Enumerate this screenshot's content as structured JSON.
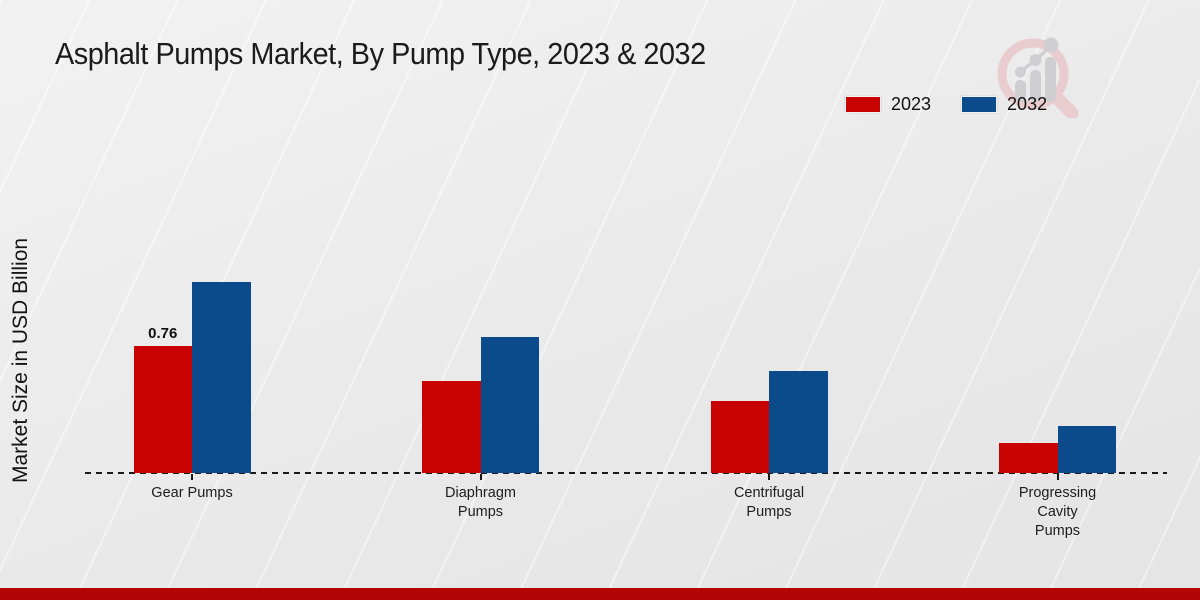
{
  "page": {
    "title": "Asphalt Pumps Market, By Pump Type, 2023 & 2032"
  },
  "y_axis_label": "Market Size in USD Billion",
  "legend": {
    "items": [
      {
        "label": "2023",
        "color": "#c90202"
      },
      {
        "label": "2032",
        "color": "#0b4b8c"
      }
    ]
  },
  "footer": {
    "color": "#b30505"
  },
  "logo": {
    "name": "market-research-magnifier-logo"
  },
  "colors": {
    "series_2023": "#c90202",
    "series_2032": "#0b4b8c",
    "footer_band": "#b30505",
    "axis": "#1a1a1a",
    "background": "#ededed"
  },
  "chart_data": {
    "type": "bar",
    "title": "Asphalt Pumps Market, By Pump Type, 2023 & 2032",
    "xlabel": "",
    "ylabel": "Market Size in USD Billion",
    "unit": "USD Billion",
    "categories": [
      "Gear Pumps",
      "Diaphragm Pumps",
      "Centrifugal Pumps",
      "Progressing Cavity Pumps"
    ],
    "categories_lines": [
      [
        "Gear Pumps"
      ],
      [
        "Diaphragm",
        "Pumps"
      ],
      [
        "Centrifugal",
        "Pumps"
      ],
      [
        "Progressing",
        "Cavity",
        "Pumps"
      ]
    ],
    "series": [
      {
        "name": "2023",
        "color": "#c90202",
        "values": [
          0.76,
          0.55,
          0.43,
          0.18
        ],
        "labels": [
          "0.76",
          "",
          "",
          ""
        ]
      },
      {
        "name": "2032",
        "color": "#0b4b8c",
        "values": [
          1.14,
          0.81,
          0.61,
          0.28
        ],
        "labels": [
          "",
          "",
          "",
          ""
        ]
      }
    ],
    "ylim": [
      0,
      1.25
    ],
    "gridlines": false,
    "y_ticks_visible": false,
    "baseline_style": "dashed",
    "legend_position": "top-right"
  }
}
